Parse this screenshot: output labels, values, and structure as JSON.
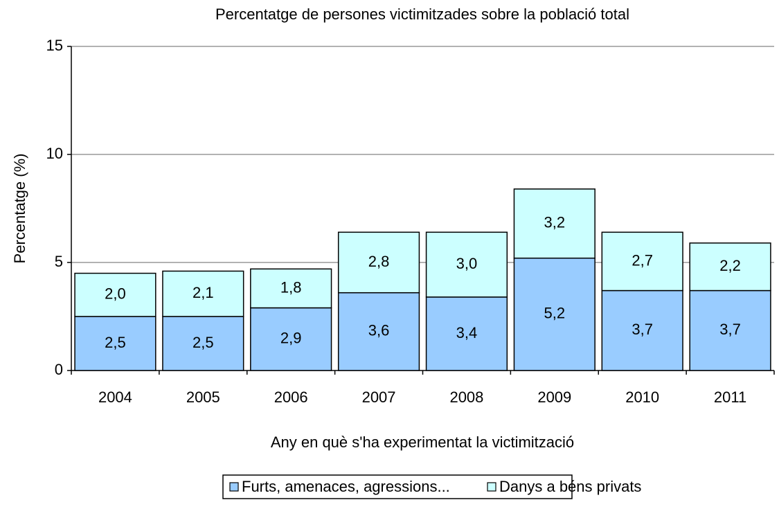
{
  "chart_data": {
    "type": "stacked_bar",
    "title": "Percentatge de persones victimitzades sobre la població total",
    "x_label": "Any en què s'ha experimentat la victimització",
    "y_label": "Percentatge (%)",
    "categories": [
      "2004",
      "2005",
      "2006",
      "2007",
      "2008",
      "2009",
      "2010",
      "2011"
    ],
    "series": [
      {
        "name": "Furts, amenaces, agressions...",
        "color": "#99ccff",
        "values": [
          2.5,
          2.5,
          2.9,
          3.6,
          3.4,
          5.2,
          3.7,
          3.7
        ],
        "value_labels": [
          "2,5",
          "2,5",
          "2,9",
          "3,6",
          "3,4",
          "5,2",
          "3,7",
          "3,7"
        ]
      },
      {
        "name": "Danys a béns privats",
        "color": "#ccffff",
        "values": [
          2.0,
          2.1,
          1.8,
          2.8,
          3.0,
          3.2,
          2.7,
          2.2
        ],
        "value_labels": [
          "2,0",
          "2,1",
          "1,8",
          "2,8",
          "3,0",
          "3,2",
          "2,7",
          "2,2"
        ]
      }
    ],
    "ylim": [
      0,
      15
    ],
    "yticks": [
      0,
      5,
      10,
      15
    ],
    "grid": true,
    "legend": "bottom"
  }
}
